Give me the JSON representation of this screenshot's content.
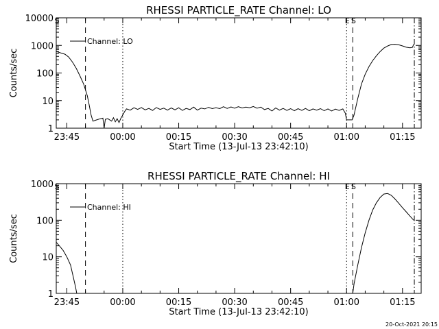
{
  "timestamp": "20-Oct-2021 20:15",
  "chart_data": [
    {
      "type": "line",
      "title": "RHESSI PARTICLE_RATE Channel: LO",
      "xlabel": "Start Time (13-Jul-13 23:42:10)",
      "ylabel": "Counts/sec",
      "yscale": "log",
      "ylim": [
        1,
        10000
      ],
      "xlim": [
        "23:42:10",
        "01:20:00"
      ],
      "y_ticks": [
        "1",
        "10",
        "100",
        "1000",
        "10000"
      ],
      "x_ticks": [
        "23:45",
        "00:00",
        "00:15",
        "00:30",
        "00:45",
        "01:00",
        "01:15"
      ],
      "legend": {
        "label": "Channel: LO",
        "position": "top-left"
      },
      "markers": [
        {
          "label": "S",
          "time": "23:42:10",
          "style": "none"
        },
        {
          "label": "",
          "time": "23:50:00",
          "style": "dashed"
        },
        {
          "label": "",
          "time": "00:00:00",
          "style": "dotted"
        },
        {
          "label": "E",
          "time": "01:00:00",
          "style": "dotted"
        },
        {
          "label": "S",
          "time": "01:01:40",
          "style": "dashed"
        },
        {
          "label": "",
          "time": "01:18:10",
          "style": "dashdot"
        }
      ],
      "series": [
        {
          "name": "Channel: LO",
          "points": [
            [
              "23:42:10",
              600
            ],
            [
              "23:44:30",
              480
            ],
            [
              "23:45:30",
              380
            ],
            [
              "23:46:30",
              250
            ],
            [
              "23:47:30",
              150
            ],
            [
              "23:48:30",
              80
            ],
            [
              "23:49:30",
              40
            ],
            [
              "23:50:30",
              15
            ],
            [
              "23:51:00",
              7
            ],
            [
              "23:51:30",
              3
            ],
            [
              "23:52:00",
              1.8
            ],
            [
              "23:53:00",
              2
            ],
            [
              "23:54:00",
              2.2
            ],
            [
              "23:54:40",
              2.3
            ],
            [
              "23:55:00",
              1
            ],
            [
              "23:55:20",
              2.1
            ],
            [
              "23:56:00",
              2.2
            ],
            [
              "23:57:00",
              1.8
            ],
            [
              "23:57:30",
              2.4
            ],
            [
              "23:58:00",
              1.7
            ],
            [
              "23:58:30",
              2.2
            ],
            [
              "23:59:00",
              1.6
            ],
            [
              "23:59:30",
              2.3
            ],
            [
              "00:00:00",
              3
            ],
            [
              "00:00:30",
              4
            ],
            [
              "00:01:00",
              5
            ],
            [
              "00:02:00",
              4.5
            ],
            [
              "00:03:00",
              5.5
            ],
            [
              "00:04:00",
              4.8
            ],
            [
              "00:05:00",
              5.6
            ],
            [
              "00:06:00",
              4.6
            ],
            [
              "00:07:00",
              5.2
            ],
            [
              "00:08:00",
              4.4
            ],
            [
              "00:09:00",
              5.6
            ],
            [
              "00:10:00",
              4.8
            ],
            [
              "00:11:00",
              5.3
            ],
            [
              "00:12:00",
              4.5
            ],
            [
              "00:13:00",
              5.4
            ],
            [
              "00:14:00",
              4.6
            ],
            [
              "00:15:00",
              5.5
            ],
            [
              "00:16:00",
              4.4
            ],
            [
              "00:17:00",
              5.2
            ],
            [
              "00:18:00",
              4.7
            ],
            [
              "00:19:00",
              5.8
            ],
            [
              "00:20:00",
              4.5
            ],
            [
              "00:21:00",
              5.3
            ],
            [
              "00:22:00",
              5
            ],
            [
              "00:23:00",
              5.7
            ],
            [
              "00:24:00",
              5.1
            ],
            [
              "00:25:00",
              5.5
            ],
            [
              "00:26:00",
              5.1
            ],
            [
              "00:27:00",
              6
            ],
            [
              "00:28:00",
              5.2
            ],
            [
              "00:29:00",
              5.9
            ],
            [
              "00:30:00",
              5.3
            ],
            [
              "00:31:00",
              6
            ],
            [
              "00:32:00",
              5.4
            ],
            [
              "00:33:00",
              5.8
            ],
            [
              "00:34:00",
              5.5
            ],
            [
              "00:35:00",
              6.1
            ],
            [
              "00:36:00",
              5.3
            ],
            [
              "00:37:00",
              5.8
            ],
            [
              "00:38:00",
              4.7
            ],
            [
              "00:39:00",
              5.2
            ],
            [
              "00:40:00",
              4.2
            ],
            [
              "00:41:00",
              5.4
            ],
            [
              "00:42:00",
              4.5
            ],
            [
              "00:43:00",
              5.2
            ],
            [
              "00:44:00",
              4.4
            ],
            [
              "00:45:00",
              5.1
            ],
            [
              "00:46:00",
              4.3
            ],
            [
              "00:47:00",
              5.1
            ],
            [
              "00:48:00",
              4.4
            ],
            [
              "00:49:00",
              5.2
            ],
            [
              "00:50:00",
              4.3
            ],
            [
              "00:51:00",
              5
            ],
            [
              "00:52:00",
              4.5
            ],
            [
              "00:53:00",
              5.1
            ],
            [
              "00:54:00",
              4.3
            ],
            [
              "00:55:00",
              5
            ],
            [
              "00:56:00",
              4.2
            ],
            [
              "00:57:00",
              4.9
            ],
            [
              "00:58:00",
              4.4
            ],
            [
              "00:59:00",
              5
            ],
            [
              "00:59:40",
              3.5
            ],
            [
              "01:00:00",
              2
            ],
            [
              "01:01:30",
              2
            ],
            [
              "01:02:00",
              3
            ],
            [
              "01:03:00",
              12
            ],
            [
              "01:04:00",
              40
            ],
            [
              "01:05:00",
              90
            ],
            [
              "01:06:00",
              170
            ],
            [
              "01:07:00",
              280
            ],
            [
              "01:08:00",
              420
            ],
            [
              "01:09:00",
              600
            ],
            [
              "01:10:00",
              800
            ],
            [
              "01:11:00",
              950
            ],
            [
              "01:12:00",
              1080
            ],
            [
              "01:13:00",
              1100
            ],
            [
              "01:14:00",
              1050
            ],
            [
              "01:15:00",
              960
            ],
            [
              "01:16:00",
              860
            ],
            [
              "01:17:00",
              820
            ],
            [
              "01:17:40",
              850
            ],
            [
              "01:18:00",
              1100
            ]
          ]
        }
      ]
    },
    {
      "type": "line",
      "title": "RHESSI PARTICLE_RATE Channel: HI",
      "xlabel": "Start Time (13-Jul-13 23:42:10)",
      "ylabel": "Counts/sec",
      "yscale": "log",
      "ylim": [
        1,
        1000
      ],
      "xlim": [
        "23:42:10",
        "01:20:00"
      ],
      "y_ticks": [
        "1",
        "10",
        "100",
        "1000"
      ],
      "x_ticks": [
        "23:45",
        "00:00",
        "00:15",
        "00:30",
        "00:45",
        "01:00",
        "01:15"
      ],
      "legend": {
        "label": "Channel: HI",
        "position": "top-left"
      },
      "markers": [
        {
          "label": "S",
          "time": "23:42:10",
          "style": "none"
        },
        {
          "label": "",
          "time": "23:50:00",
          "style": "dashed"
        },
        {
          "label": "",
          "time": "00:00:00",
          "style": "dotted"
        },
        {
          "label": "E",
          "time": "01:00:00",
          "style": "dotted"
        },
        {
          "label": "S",
          "time": "01:01:40",
          "style": "dashed"
        },
        {
          "label": "",
          "time": "01:18:10",
          "style": "dashdot"
        }
      ],
      "series": [
        {
          "name": "Channel: HI",
          "points": [
            [
              "23:42:10",
              25
            ],
            [
              "23:43:00",
              20
            ],
            [
              "23:44:00",
              15
            ],
            [
              "23:45:00",
              10
            ],
            [
              "23:46:00",
              6
            ],
            [
              "23:46:40",
              3
            ],
            [
              "23:47:20",
              1.5
            ],
            [
              "23:47:40",
              1
            ],
            [
              "01:01:40",
              1
            ],
            [
              "01:02:00",
              1.8
            ],
            [
              "01:03:00",
              6
            ],
            [
              "01:04:00",
              18
            ],
            [
              "01:05:00",
              45
            ],
            [
              "01:06:00",
              100
            ],
            [
              "01:07:00",
              190
            ],
            [
              "01:08:00",
              300
            ],
            [
              "01:09:00",
              420
            ],
            [
              "01:10:00",
              520
            ],
            [
              "01:11:00",
              540
            ],
            [
              "01:12:00",
              480
            ],
            [
              "01:13:00",
              380
            ],
            [
              "01:14:00",
              290
            ],
            [
              "01:15:00",
              220
            ],
            [
              "01:16:00",
              170
            ],
            [
              "01:17:00",
              130
            ],
            [
              "01:18:00",
              100
            ]
          ]
        }
      ]
    }
  ]
}
